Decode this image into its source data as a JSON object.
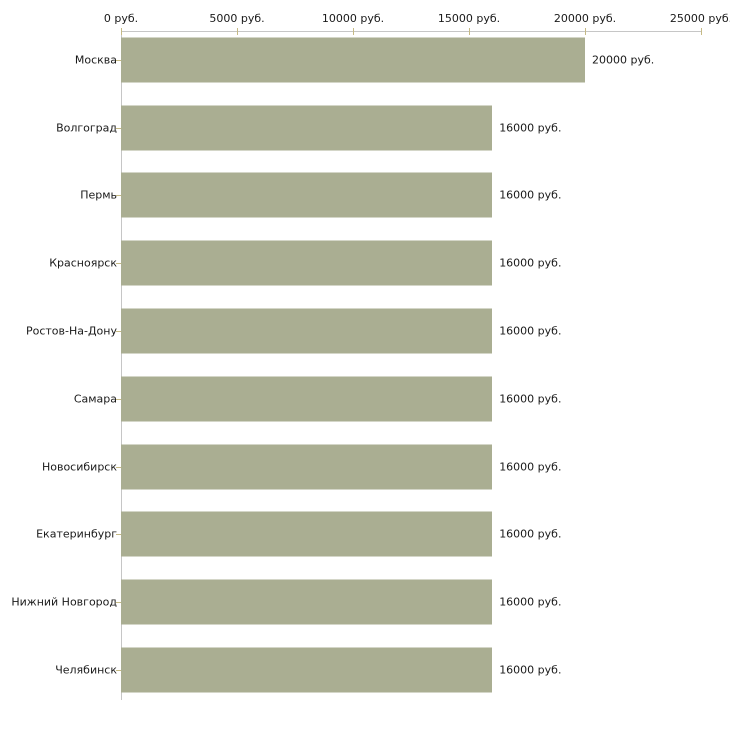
{
  "chart_data": {
    "type": "bar",
    "orientation": "horizontal",
    "title": "",
    "xlabel": "",
    "ylabel": "",
    "categories": [
      "Москва",
      "Волгоград",
      "Пермь",
      "Красноярск",
      "Ростов-На-Дону",
      "Самара",
      "Новосибирск",
      "Екатеринбург",
      "Нижний Новгород",
      "Челябинск"
    ],
    "values": [
      20000,
      16000,
      16000,
      16000,
      16000,
      16000,
      16000,
      16000,
      16000,
      16000
    ],
    "bar_labels": [
      "20000 руб.",
      "16000 руб.",
      "16000 руб.",
      "16000 руб.",
      "16000 руб.",
      "16000 руб.",
      "16000 руб.",
      "16000 руб.",
      "16000 руб.",
      "16000 руб."
    ],
    "x_axis": {
      "position": "top",
      "min": 0,
      "max": 25000,
      "ticks": [
        0,
        5000,
        10000,
        15000,
        20000,
        25000
      ],
      "tick_labels": [
        "0 руб.",
        "5000 руб.",
        "10000 руб.",
        "15000 руб.",
        "20000 руб.",
        "25000 руб."
      ]
    },
    "legend": null,
    "grid": false,
    "colors": {
      "bar": "#aaae92",
      "axis_line": "#c6c6c6",
      "tick_mark": "#c6ba85",
      "text": "#1a1a1a",
      "background": "#ffffff"
    }
  }
}
